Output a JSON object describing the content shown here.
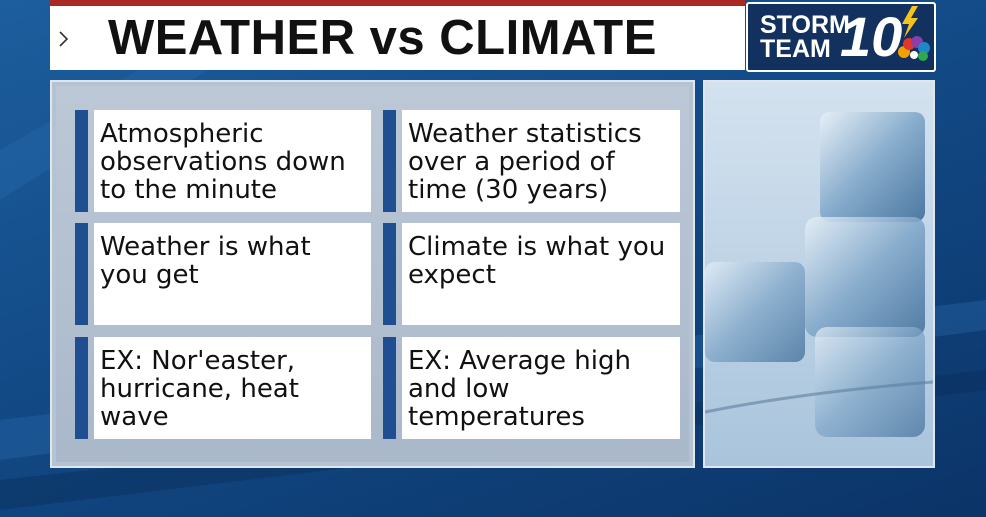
{
  "header": {
    "title": "WEATHER vs CLIMATE"
  },
  "logo": {
    "line1": "STORM",
    "line2": "TEAM",
    "number": "10"
  },
  "cards": {
    "rows": [
      [
        "Atmospheric observations down to the minute",
        "Weather statistics over a period of time (30 years)"
      ],
      [
        "Weather is what you get",
        "Climate is what you expect"
      ],
      [
        "EX: Nor'easter, hurricane, heat wave",
        "EX: Average high and low temperatures"
      ]
    ]
  }
}
